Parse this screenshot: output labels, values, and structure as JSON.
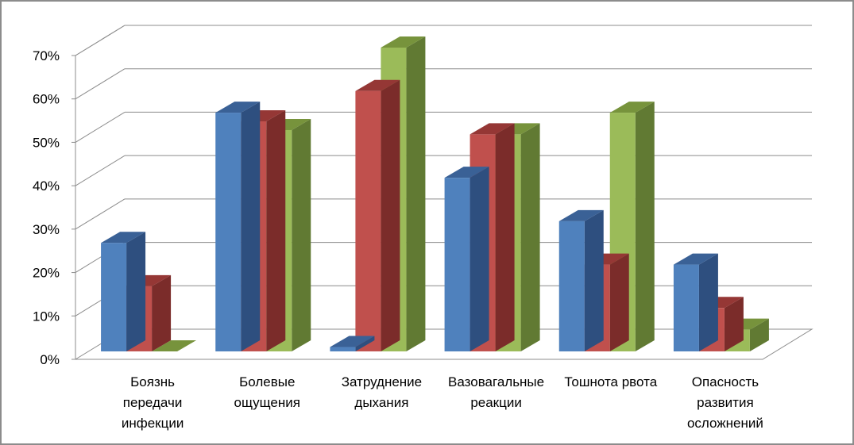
{
  "chart_data": {
    "type": "bar",
    "style": "3d-clustered-column",
    "title": "",
    "xlabel": "",
    "ylabel": "",
    "ylim": [
      0,
      0.7
    ],
    "y_ticks": [
      "0%",
      "10%",
      "20%",
      "30%",
      "40%",
      "50%",
      "60%",
      "70%"
    ],
    "grid": true,
    "legend": "none",
    "categories": [
      [
        "Боязнь",
        "передачи",
        "инфекции"
      ],
      [
        "Болевые",
        "ощущения"
      ],
      [
        "Затруднение",
        "дыхания"
      ],
      [
        "Вазовагальные",
        "реакции"
      ],
      [
        "Тошнота рвота"
      ],
      [
        "Опасность",
        "развития",
        "осложнений"
      ]
    ],
    "series": [
      {
        "values": [
          0.25,
          0.55,
          0.01,
          0.4,
          0.3,
          0.2
        ],
        "color_front": "#4f81bd",
        "color_side": "#2e4f7f",
        "color_top": "#3a6196"
      },
      {
        "values": [
          0.15,
          0.53,
          0.6,
          0.5,
          0.2,
          0.1
        ],
        "color_front": "#c0504d",
        "color_side": "#7b2c2a",
        "color_top": "#953735"
      },
      {
        "values": [
          0.0,
          0.51,
          0.7,
          0.5,
          0.55,
          0.05
        ],
        "color_front": "#9bbb59",
        "color_side": "#617a33",
        "color_top": "#77933c"
      }
    ]
  }
}
